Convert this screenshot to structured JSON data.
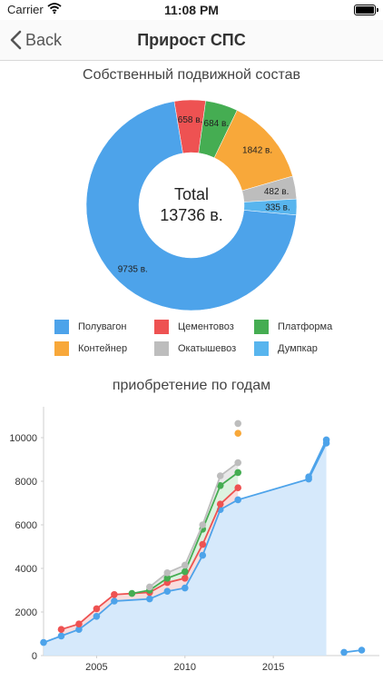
{
  "status_bar": {
    "carrier": "Carrier",
    "time": "11:08 PM"
  },
  "nav": {
    "back_label": "Back",
    "title": "Прирост СПС"
  },
  "colors": {
    "polyvagon": "#4da3ea",
    "cementovoz": "#ee5252",
    "platforma": "#45ad52",
    "container": "#f8a83a",
    "okatyshevoz": "#bdbdbd",
    "dumpcar": "#58b5ee"
  },
  "donut": {
    "title": "Собственный подвижной состав",
    "total_label": "Total",
    "total_value": "13736 в."
  },
  "chart_data": [
    {
      "type": "pie",
      "title": "Собственный подвижной состав",
      "categories": [
        "Полувагон",
        "Цементовоз",
        "Платформа",
        "Контейнер",
        "Окатышевоз",
        "Думпкар"
      ],
      "values": [
        9735,
        658,
        684,
        1842,
        482,
        335
      ],
      "value_labels": [
        "9735 в.",
        "658 в.",
        "684 в.",
        "1842 в.",
        "482 в.",
        "335 в."
      ],
      "legend_position": "bottom"
    },
    {
      "type": "area",
      "title": "приобретение по годам",
      "ylim": [
        0,
        11000
      ],
      "yticks": [
        0,
        2000,
        4000,
        6000,
        8000,
        10000
      ],
      "xlim": [
        2002,
        2021
      ],
      "xticks": [
        2005,
        2010,
        2015
      ],
      "grid": false,
      "series": [
        {
          "color": "#4da3ea",
          "x": [
            2002,
            2003,
            2004,
            2005,
            2006,
            2008,
            2009,
            2010,
            2011,
            2012,
            2013,
            2017,
            2018
          ],
          "y": [
            600,
            900,
            1200,
            1800,
            2500,
            2600,
            2950,
            3100,
            4600,
            6700,
            7150,
            8100,
            9750
          ]
        },
        {
          "color": "#ee5252",
          "x": [
            2003,
            2004,
            2005,
            2006,
            2008,
            2009,
            2010,
            2011,
            2012,
            2013
          ],
          "y": [
            1200,
            1450,
            2150,
            2800,
            2900,
            3350,
            3550,
            5100,
            6950,
            7700
          ]
        },
        {
          "color": "#45ad52",
          "x": [
            2007,
            2008,
            2009,
            2010,
            2011,
            2012,
            2013
          ],
          "y": [
            2850,
            3000,
            3550,
            3850,
            5800,
            7800,
            8400
          ]
        },
        {
          "color": "#bdbdbd",
          "x": [
            2008,
            2009,
            2010,
            2011,
            2012,
            2013
          ],
          "y": [
            3150,
            3800,
            4150,
            6000,
            8250,
            8850
          ]
        },
        {
          "color": "#4da3ea",
          "x": [
            2017,
            2018
          ],
          "y": [
            8200,
            9900
          ]
        },
        {
          "color": "#4da3ea",
          "x": [
            2019,
            2020
          ],
          "y": [
            150,
            250
          ]
        }
      ],
      "points": [
        {
          "x": 2013,
          "y": 10650,
          "color": "#bdbdbd"
        },
        {
          "x": 2013,
          "y": 10200,
          "color": "#f8a83a"
        }
      ]
    }
  ],
  "legend": [
    {
      "label": "Полувагон",
      "color": "#4da3ea"
    },
    {
      "label": "Цементовоз",
      "color": "#ee5252"
    },
    {
      "label": "Платформа",
      "color": "#45ad52"
    },
    {
      "label": "Контейнер",
      "color": "#f8a83a"
    },
    {
      "label": "Окатышевоз",
      "color": "#bdbdbd"
    },
    {
      "label": "Думпкар",
      "color": "#58b5ee"
    }
  ],
  "chart2_title": "приобретение по годам"
}
